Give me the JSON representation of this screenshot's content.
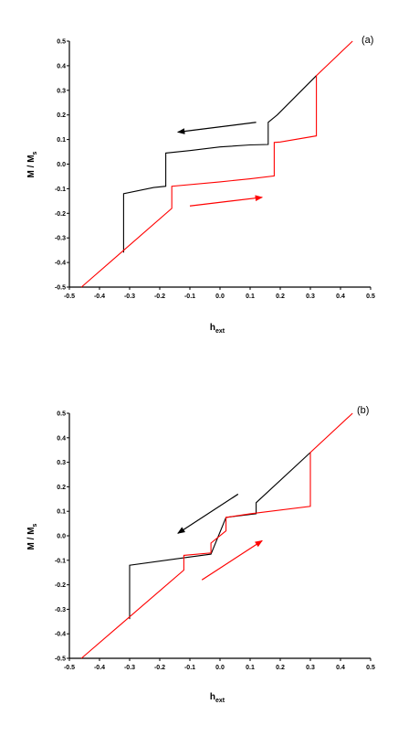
{
  "chart_data": [
    {
      "type": "line",
      "panel_label": "(a)",
      "xlabel": "h_ext",
      "ylabel": "M / M_s",
      "xlim": [
        -0.5,
        0.5
      ],
      "ylim": [
        -0.5,
        0.5
      ],
      "xticks": [
        -0.5,
        -0.4,
        -0.3,
        -0.2,
        -0.1,
        0.0,
        0.1,
        0.2,
        0.3,
        0.4,
        0.5
      ],
      "yticks": [
        -0.5,
        -0.4,
        -0.3,
        -0.2,
        -0.1,
        0.0,
        0.1,
        0.2,
        0.3,
        0.4,
        0.5
      ],
      "xtick_labels": [
        "-0.5",
        "-0.4",
        "-0.3",
        "-0.2",
        "-0.1",
        "0.0",
        "0.1",
        "0.2",
        "0.3",
        "0.4",
        "0.5"
      ],
      "ytick_labels": [
        "-0.5",
        "-0.4",
        "-0.3",
        "-0.2",
        "-0.1",
        "0.0",
        "0.1",
        "0.2",
        "0.3",
        "0.4",
        "0.5"
      ],
      "series": [
        {
          "color": "#000000",
          "x": [
            0.32,
            0.19,
            0.16,
            0.16,
            0.1,
            0.0,
            -0.1,
            -0.18,
            -0.18,
            -0.22,
            -0.32,
            -0.32
          ],
          "y": [
            0.36,
            0.2,
            0.17,
            0.08,
            0.078,
            0.07,
            0.055,
            0.045,
            -0.09,
            -0.095,
            -0.12,
            -0.36
          ]
        },
        {
          "color": "#ff0000",
          "x": [
            -0.46,
            -0.16,
            -0.16,
            0.0,
            0.1,
            0.18,
            0.18,
            0.2,
            0.32,
            0.32,
            0.44
          ],
          "y": [
            -0.5,
            -0.18,
            -0.09,
            -0.072,
            -0.06,
            -0.048,
            0.088,
            0.09,
            0.115,
            0.36,
            0.5
          ]
        }
      ],
      "arrows": [
        {
          "color": "#000000",
          "x": [
            0.12,
            -0.14
          ],
          "y": [
            0.17,
            0.13
          ]
        },
        {
          "color": "#ff0000",
          "x": [
            -0.1,
            0.14
          ],
          "y": [
            -0.17,
            -0.135
          ]
        }
      ]
    },
    {
      "type": "line",
      "panel_label": "(b)",
      "xlabel": "h_ext",
      "ylabel": "M / M_s",
      "xlim": [
        -0.5,
        0.5
      ],
      "ylim": [
        -0.5,
        0.5
      ],
      "xticks": [
        -0.5,
        -0.4,
        -0.3,
        -0.2,
        -0.1,
        0.0,
        0.1,
        0.2,
        0.3,
        0.4,
        0.5
      ],
      "yticks": [
        -0.5,
        -0.4,
        -0.3,
        -0.2,
        -0.1,
        0.0,
        0.1,
        0.2,
        0.3,
        0.4,
        0.5
      ],
      "xtick_labels": [
        "-0.5",
        "-0.4",
        "-0.3",
        "-0.2",
        "-0.1",
        "0.0",
        "0.1",
        "0.2",
        "0.3",
        "0.4",
        "0.5"
      ],
      "ytick_labels": [
        "-0.5",
        "-0.4",
        "-0.3",
        "-0.2",
        "-0.1",
        "0.0",
        "0.1",
        "0.2",
        "0.3",
        "0.4",
        "0.5"
      ],
      "series": [
        {
          "color": "#000000",
          "x": [
            0.3,
            0.12,
            0.12,
            0.02,
            -0.03,
            -0.12,
            -0.3,
            -0.3
          ],
          "y": [
            0.34,
            0.135,
            0.09,
            0.075,
            -0.075,
            -0.09,
            -0.12,
            -0.34
          ]
        },
        {
          "color": "#ff0000",
          "x": [
            -0.46,
            -0.12,
            -0.12,
            -0.03,
            -0.03,
            0.02,
            0.02,
            0.1,
            0.3,
            0.3,
            0.44
          ],
          "y": [
            -0.5,
            -0.14,
            -0.08,
            -0.07,
            -0.03,
            0.02,
            0.075,
            0.09,
            0.12,
            0.34,
            0.5
          ]
        }
      ],
      "arrows": [
        {
          "color": "#000000",
          "x": [
            0.06,
            -0.14
          ],
          "y": [
            0.17,
            0.01
          ]
        },
        {
          "color": "#ff0000",
          "x": [
            -0.06,
            0.14
          ],
          "y": [
            -0.18,
            -0.02
          ]
        }
      ]
    }
  ]
}
